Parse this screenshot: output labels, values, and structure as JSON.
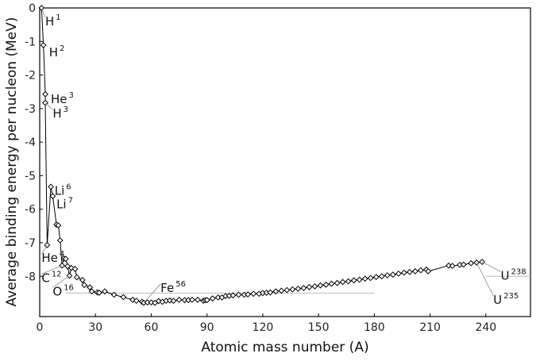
{
  "chart_data": {
    "type": "scatter",
    "title": "",
    "xlabel": "Atomic mass number (A)",
    "ylabel": "Average binding energy per nucleon (MeV)",
    "xlim": [
      0,
      264
    ],
    "ylim": [
      -9.2,
      0
    ],
    "xticks": [
      0,
      30,
      60,
      90,
      120,
      150,
      180,
      210,
      240
    ],
    "yticks": [
      0,
      -1,
      -2,
      -3,
      -4,
      -5,
      -6,
      -7,
      -8
    ],
    "ytick_labels": [
      "0",
      "-1",
      "-2",
      "-3",
      "-4",
      "-5",
      "-6",
      "-7",
      "-8"
    ],
    "grid": false,
    "reference_lines": [
      {
        "x1": 14,
        "x2": 180,
        "y": -8.5
      },
      {
        "x1": 240,
        "x2": 264,
        "y": -8.0
      }
    ],
    "series": [
      {
        "x": [
          1,
          2,
          3,
          3,
          4,
          6,
          7,
          9,
          10,
          11,
          12,
          13,
          14,
          15,
          16,
          17,
          19,
          20,
          23,
          24,
          27,
          28,
          31,
          32,
          35,
          40,
          45,
          50,
          52,
          55,
          56,
          58,
          60,
          62,
          64,
          66,
          68,
          70,
          72,
          75,
          78,
          80,
          82,
          85,
          88,
          89,
          90,
          93,
          96,
          98,
          100,
          102,
          104,
          107,
          110,
          112,
          115,
          118,
          120,
          122,
          124,
          127,
          130,
          133,
          136,
          139,
          142,
          145,
          148,
          151,
          154,
          157,
          160,
          163,
          166,
          169,
          172,
          175,
          178,
          181,
          184,
          187,
          190,
          193,
          196,
          199,
          202,
          205,
          208,
          209,
          220,
          222,
          226,
          228,
          232,
          235,
          238
        ],
        "y": [
          0,
          -1.11,
          -2.57,
          -2.83,
          -7.07,
          -5.33,
          -5.61,
          -6.46,
          -6.48,
          -6.93,
          -7.68,
          -7.47,
          -7.48,
          -7.7,
          -7.98,
          -7.75,
          -7.78,
          -8.03,
          -8.11,
          -8.26,
          -8.33,
          -8.45,
          -8.48,
          -8.49,
          -8.45,
          -8.55,
          -8.62,
          -8.7,
          -8.73,
          -8.76,
          -8.79,
          -8.78,
          -8.78,
          -8.79,
          -8.74,
          -8.76,
          -8.73,
          -8.72,
          -8.73,
          -8.7,
          -8.71,
          -8.71,
          -8.7,
          -8.7,
          -8.73,
          -8.71,
          -8.71,
          -8.66,
          -8.63,
          -8.63,
          -8.59,
          -8.58,
          -8.57,
          -8.55,
          -8.55,
          -8.54,
          -8.52,
          -8.52,
          -8.5,
          -8.49,
          -8.48,
          -8.45,
          -8.43,
          -8.41,
          -8.39,
          -8.37,
          -8.35,
          -8.32,
          -8.3,
          -8.27,
          -8.25,
          -8.22,
          -8.2,
          -8.17,
          -8.15,
          -8.12,
          -8.1,
          -8.07,
          -8.05,
          -8.02,
          -8.0,
          -7.97,
          -7.95,
          -7.92,
          -7.89,
          -7.87,
          -7.85,
          -7.82,
          -7.8,
          -7.85,
          -7.68,
          -7.69,
          -7.66,
          -7.65,
          -7.61,
          -7.59,
          -7.57
        ]
      }
    ],
    "annotations": [
      {
        "text": "H",
        "sup": "1",
        "x": 1,
        "y": 0,
        "lx": 3,
        "ly": -0.4
      },
      {
        "text": "H",
        "sup": "2",
        "x": 2,
        "y": -1.11,
        "lx": 5,
        "ly": -1.32
      },
      {
        "text": "He",
        "sup": "3",
        "x": 3,
        "y": -2.57,
        "lx": 6,
        "ly": -2.72
      },
      {
        "text": "H",
        "sup": "3",
        "x": 3,
        "y": -2.83,
        "lx": 7,
        "ly": -3.15
      },
      {
        "text": "Li",
        "sup": "6",
        "x": 6,
        "y": -5.33,
        "lx": 8,
        "ly": -5.45
      },
      {
        "text": "Li",
        "sup": "7",
        "x": 7,
        "y": -5.61,
        "lx": 9,
        "ly": -5.85
      },
      {
        "text": "He",
        "sup": "4",
        "x": 4,
        "y": -7.07,
        "lx": 1,
        "ly": -7.45
      },
      {
        "text": "C",
        "sup": "12",
        "x": 12,
        "y": -7.68,
        "lx": 1,
        "ly": -8.05
      },
      {
        "text": "O",
        "sup": "16",
        "x": 16,
        "y": -7.98,
        "lx": 7,
        "ly": -8.45
      },
      {
        "text": "Fe",
        "sup": "56",
        "x": 56,
        "y": -8.79,
        "lx": 65,
        "ly": -8.35
      },
      {
        "text": "U",
        "sup": "238",
        "x": 238,
        "y": -7.57,
        "lx": 248,
        "ly": -7.98
      },
      {
        "text": "U",
        "sup": "235",
        "x": 235,
        "y": -7.59,
        "lx": 244,
        "ly": -8.7
      }
    ]
  }
}
